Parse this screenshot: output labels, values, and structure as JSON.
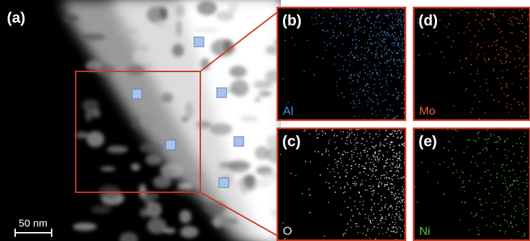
{
  "panels": [
    {
      "label": "(a)"
    },
    {
      "label": "(b)",
      "element": "Al"
    },
    {
      "label": "(c)",
      "element": "O"
    },
    {
      "label": "(d)",
      "element": "Mo"
    },
    {
      "label": "(e)",
      "element": "Ni"
    }
  ],
  "scale_bar": "50 nm"
}
